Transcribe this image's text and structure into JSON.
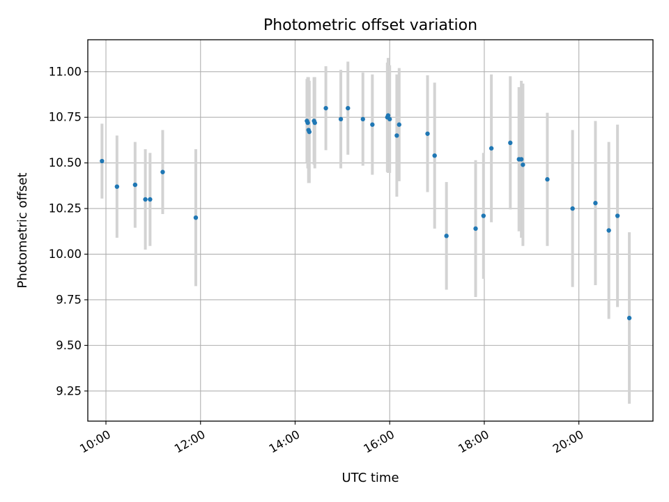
{
  "chart_data": {
    "type": "scatter",
    "title": "Photometric offset variation",
    "xlabel": "UTC time",
    "ylabel": "Photometric offset",
    "x_unit": "hours (UTC)",
    "xlim": [
      "09:37",
      "21:34"
    ],
    "ylim": [
      9.085,
      11.175
    ],
    "x_ticks": [
      "10:00",
      "12:00",
      "14:00",
      "16:00",
      "18:00",
      "20:00"
    ],
    "y_ticks": [
      "9.25",
      "9.50",
      "9.75",
      "10.00",
      "10.25",
      "10.50",
      "10.75",
      "11.00"
    ],
    "grid": true,
    "legend": "none",
    "colors": {
      "point": "#1f77b4",
      "errorbar": "#d3d3d3",
      "grid": "#b0b0b0"
    },
    "series": [
      {
        "points": [
          {
            "x": "09:55",
            "y": 10.51,
            "yerr": 0.205
          },
          {
            "x": "10:14",
            "y": 10.37,
            "yerr": 0.28
          },
          {
            "x": "10:37",
            "y": 10.38,
            "yerr": 0.235
          },
          {
            "x": "10:50",
            "y": 10.3,
            "yerr": 0.275
          },
          {
            "x": "10:56",
            "y": 10.3,
            "yerr": 0.255
          },
          {
            "x": "11:12",
            "y": 10.45,
            "yerr": 0.23
          },
          {
            "x": "11:54",
            "y": 10.2,
            "yerr": 0.375
          },
          {
            "x": "14:15",
            "y": 10.73,
            "yerr": 0.23
          },
          {
            "x": "14:16",
            "y": 10.72,
            "yerr": 0.25
          },
          {
            "x": "14:17",
            "y": 10.68,
            "yerr": 0.29
          },
          {
            "x": "14:18",
            "y": 10.67,
            "yerr": 0.28
          },
          {
            "x": "14:24",
            "y": 10.73,
            "yerr": 0.24
          },
          {
            "x": "14:25",
            "y": 10.72,
            "yerr": 0.25
          },
          {
            "x": "14:39",
            "y": 10.8,
            "yerr": 0.23
          },
          {
            "x": "14:58",
            "y": 10.74,
            "yerr": 0.27
          },
          {
            "x": "15:07",
            "y": 10.8,
            "yerr": 0.255
          },
          {
            "x": "15:26",
            "y": 10.74,
            "yerr": 0.255
          },
          {
            "x": "15:38",
            "y": 10.71,
            "yerr": 0.275
          },
          {
            "x": "15:57",
            "y": 10.75,
            "yerr": 0.3
          },
          {
            "x": "15:58",
            "y": 10.76,
            "yerr": 0.315
          },
          {
            "x": "16:00",
            "y": 10.74,
            "yerr": 0.295
          },
          {
            "x": "16:09",
            "y": 10.65,
            "yerr": 0.335
          },
          {
            "x": "16:12",
            "y": 10.71,
            "yerr": 0.31
          },
          {
            "x": "16:48",
            "y": 10.66,
            "yerr": 0.32
          },
          {
            "x": "16:57",
            "y": 10.54,
            "yerr": 0.4
          },
          {
            "x": "17:12",
            "y": 10.1,
            "yerr": 0.295
          },
          {
            "x": "17:49",
            "y": 10.14,
            "yerr": 0.375
          },
          {
            "x": "17:59",
            "y": 10.21,
            "yerr": 0.345
          },
          {
            "x": "18:09",
            "y": 10.58,
            "yerr": 0.405
          },
          {
            "x": "18:33",
            "y": 10.61,
            "yerr": 0.365
          },
          {
            "x": "18:44",
            "y": 10.52,
            "yerr": 0.395
          },
          {
            "x": "18:47",
            "y": 10.52,
            "yerr": 0.43
          },
          {
            "x": "18:49",
            "y": 10.49,
            "yerr": 0.445
          },
          {
            "x": "19:20",
            "y": 10.41,
            "yerr": 0.365
          },
          {
            "x": "19:52",
            "y": 10.25,
            "yerr": 0.43
          },
          {
            "x": "20:21",
            "y": 10.28,
            "yerr": 0.45
          },
          {
            "x": "20:38",
            "y": 10.13,
            "yerr": 0.485
          },
          {
            "x": "20:49",
            "y": 10.21,
            "yerr": 0.5
          },
          {
            "x": "21:04",
            "y": 9.65,
            "yerr": 0.47
          }
        ]
      }
    ]
  }
}
